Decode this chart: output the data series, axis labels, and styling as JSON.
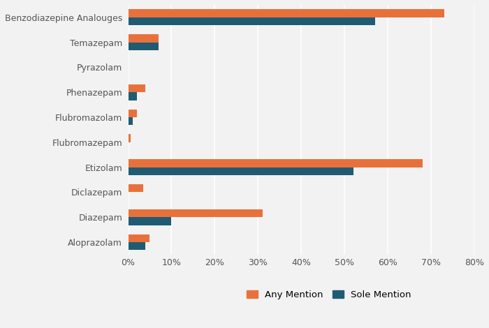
{
  "categories": [
    "Benzodiazepine Analouges",
    "Temazepam",
    "Pyrazolam",
    "Phenazepam",
    "Flubromazolam",
    "Flubromazepam",
    "Etizolam",
    "Diclazepam",
    "Diazepam",
    "Aloprazolam"
  ],
  "any_mention": [
    73,
    7,
    0,
    4,
    2,
    0.5,
    68,
    3.5,
    31,
    5
  ],
  "sole_mention": [
    57,
    7,
    0,
    2,
    1,
    0,
    52,
    0,
    10,
    4
  ],
  "color_any": "#E8713B",
  "color_sole": "#1F5C73",
  "bar_height": 0.32,
  "xlim": [
    0,
    80
  ],
  "xticks": [
    0,
    10,
    20,
    30,
    40,
    50,
    60,
    70,
    80
  ],
  "xtick_labels": [
    "0%",
    "10%",
    "20%",
    "30%",
    "40%",
    "50%",
    "60%",
    "70%",
    "80%"
  ],
  "legend_labels": [
    "Any Mention",
    "Sole Mention"
  ],
  "background_color": "#f2f2f2",
  "grid_color": "#ffffff",
  "title": ""
}
